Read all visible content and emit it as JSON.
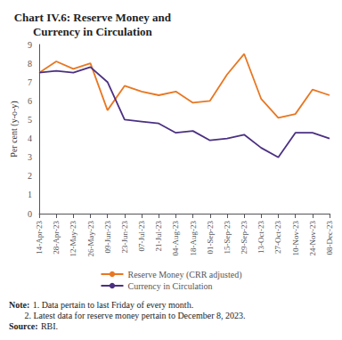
{
  "chart_data": {
    "type": "line",
    "title": "Chart IV.6: Reserve Money and\nCurrency in Circulation",
    "y_label": "Per cent (y-o-y)",
    "categories": [
      "14-Apr-23",
      "28-Apr-23",
      "12-May-23",
      "26-May-23",
      "09-Jun-23",
      "23-Jun-23",
      "07-Jul-23",
      "21-Jul-23",
      "04-Aug-23",
      "18-Aug-23",
      "01-Sep-23",
      "15-Sep-23",
      "29-Sep-23",
      "13-Oct-23",
      "27-Oct-23",
      "10-Nov-23",
      "24-Nov-23",
      "08-Dec-23"
    ],
    "series": [
      {
        "name": "Reserve Money (CRR adjusted)",
        "color": "#E87722",
        "values": [
          7.5,
          8.1,
          7.7,
          8.0,
          5.5,
          6.8,
          6.5,
          6.3,
          6.5,
          5.9,
          6.0,
          7.4,
          8.5,
          6.1,
          5.1,
          5.3,
          6.6,
          6.3
        ]
      },
      {
        "name": "Currency in Circulation",
        "color": "#4B3082",
        "values": [
          7.5,
          7.6,
          7.5,
          7.8,
          7.0,
          5.0,
          4.9,
          4.8,
          4.3,
          4.4,
          3.9,
          4.0,
          4.2,
          3.5,
          3.0,
          4.3,
          4.3,
          4.0
        ]
      }
    ],
    "ylim": [
      0,
      9
    ],
    "yticks": [
      0,
      1,
      2,
      3,
      4,
      5,
      6,
      7,
      8,
      9
    ],
    "grid": false,
    "legend": "bottom",
    "annotations": [
      {
        "heading": "Note:",
        "lines": [
          "1. Data pertain to last Friday of every month.",
          "2. Latest data for reserve money pertain to December 8, 2023."
        ]
      },
      {
        "heading": "Source:",
        "lines": [
          "RBI."
        ]
      }
    ]
  }
}
